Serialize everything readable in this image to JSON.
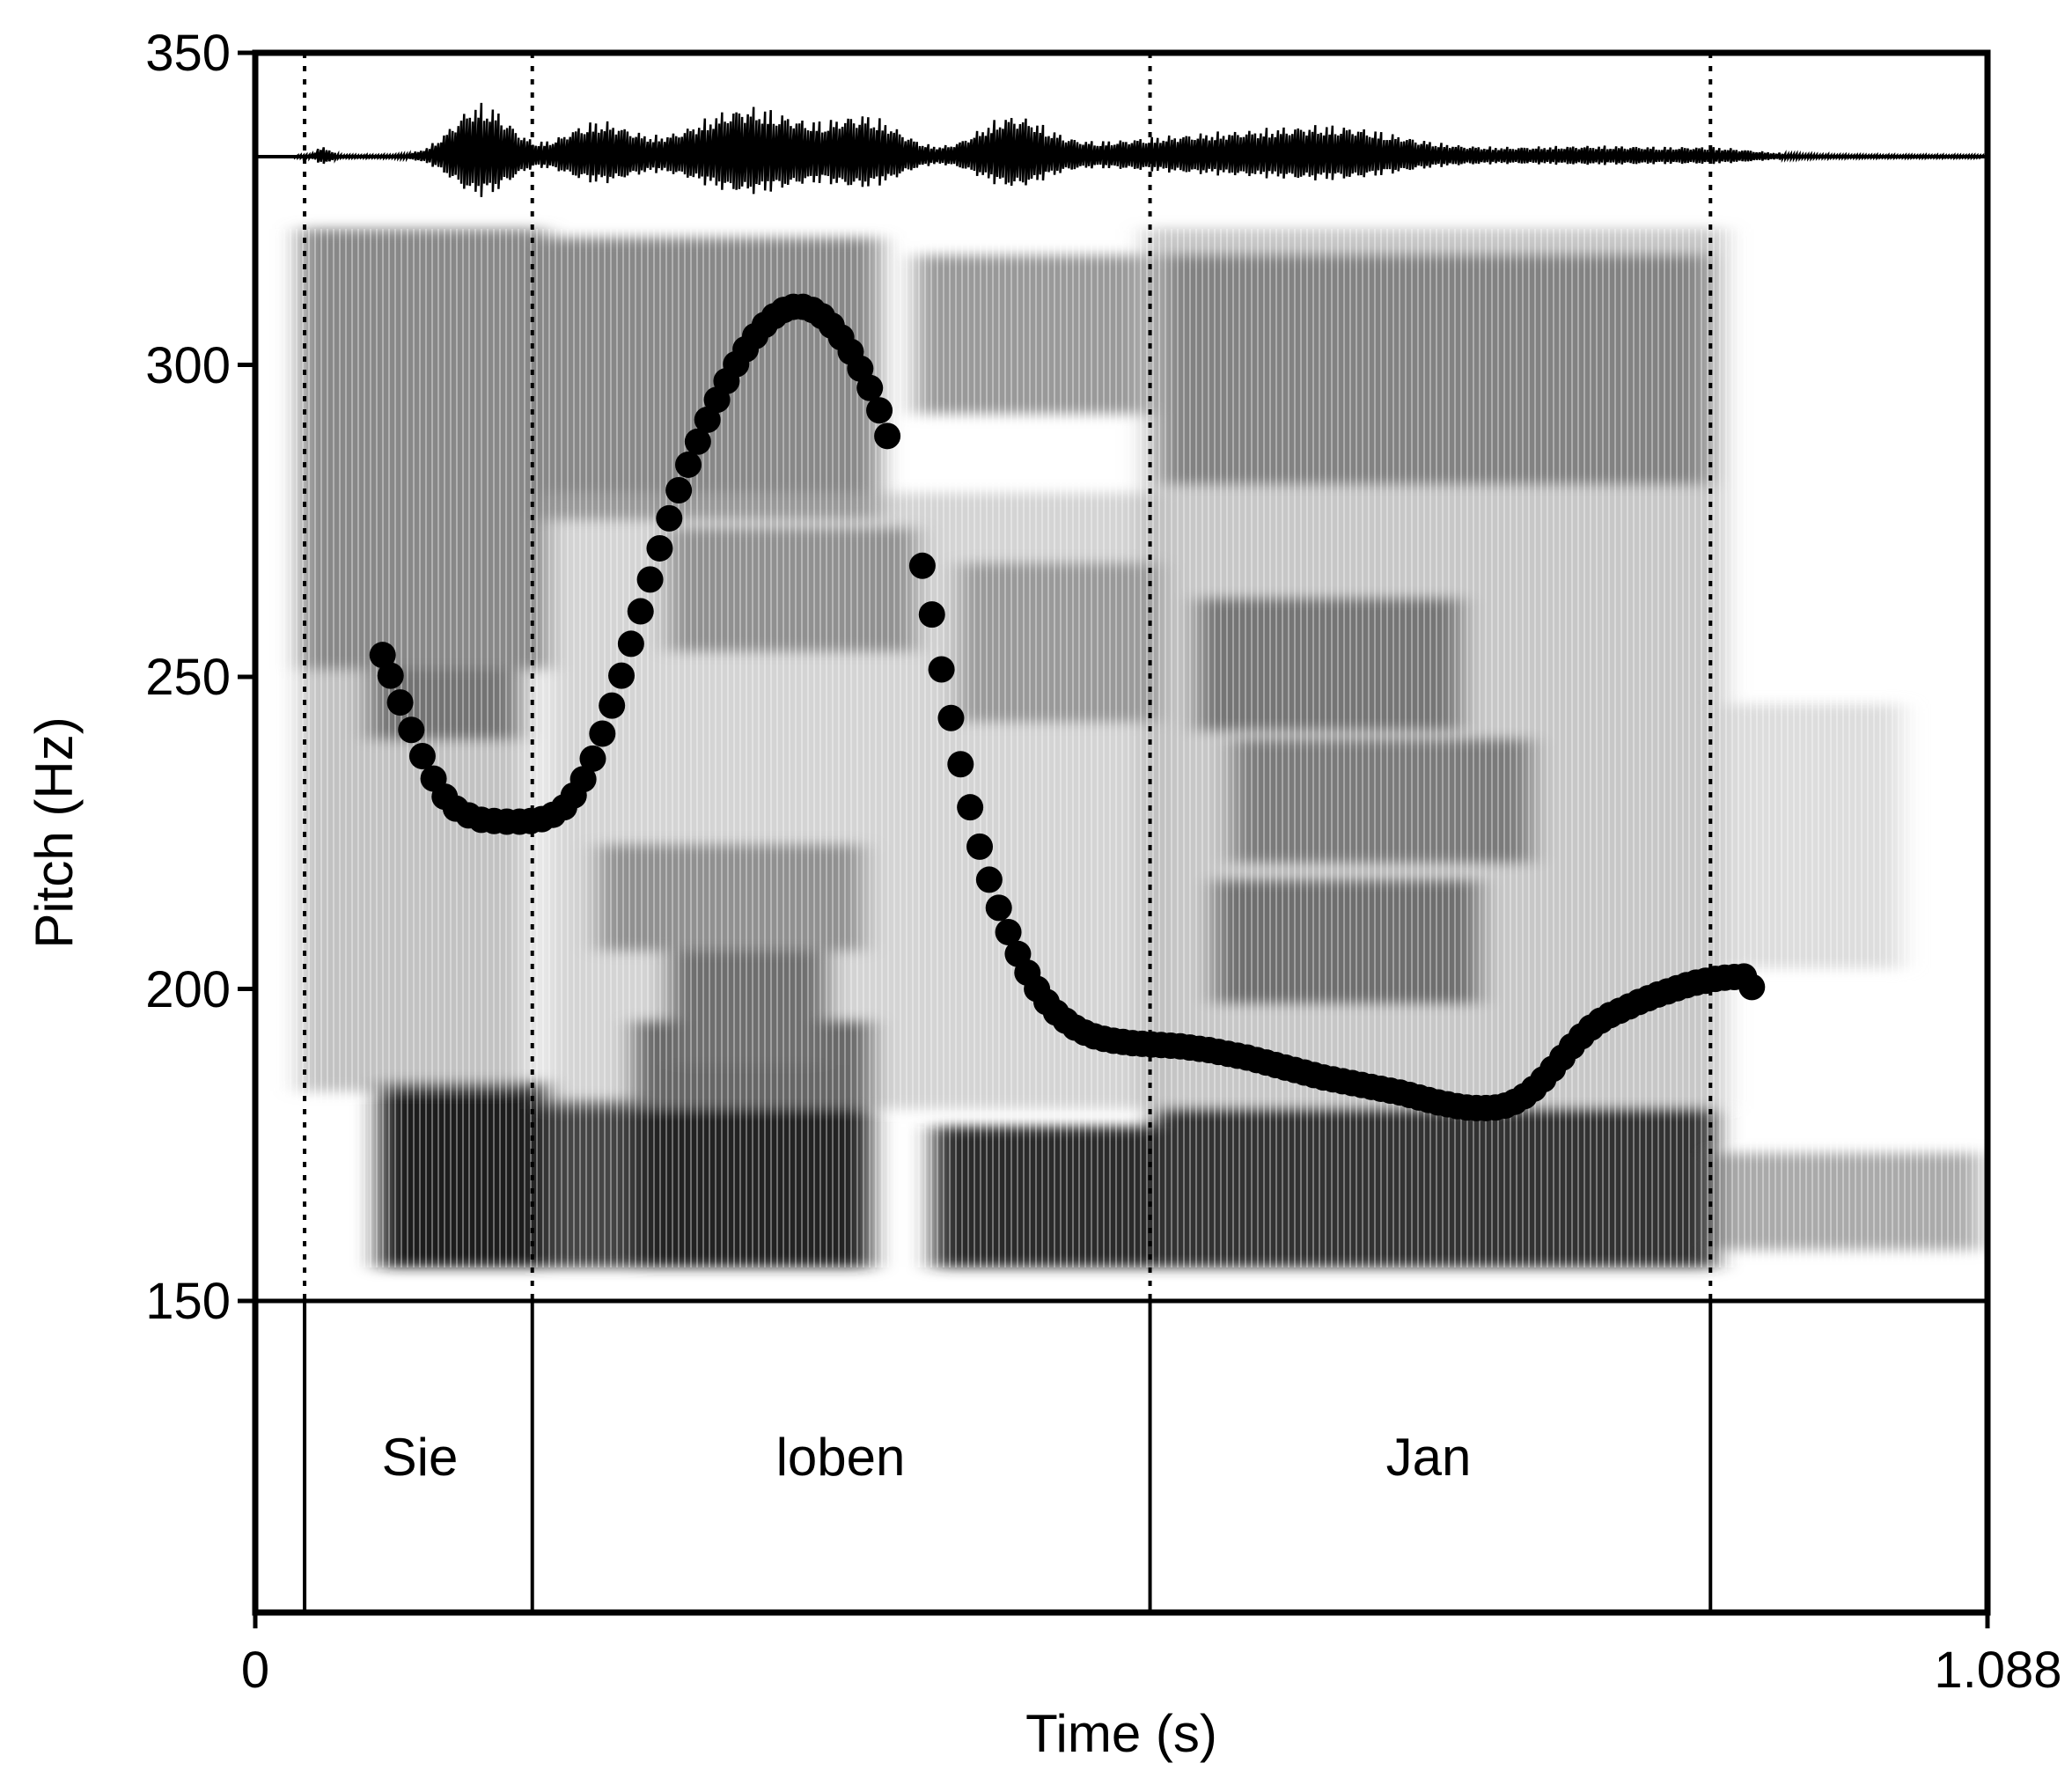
{
  "chart_data": {
    "type": "scatter",
    "title": "",
    "xlabel": "Time (s)",
    "ylabel": "Pitch (Hz)",
    "xlim": [
      0,
      1.088
    ],
    "ylim": [
      150,
      350
    ],
    "x_tick_labels": [
      "0",
      "1.088"
    ],
    "y_tick_labels": [
      "350",
      "300",
      "250",
      "200",
      "150"
    ],
    "grid": false,
    "legend": "none",
    "word_boundaries": [
      0.031,
      0.174,
      0.562,
      0.914
    ],
    "words": [
      {
        "label": "Sie",
        "start": 0.031,
        "end": 0.174
      },
      {
        "label": "loben",
        "start": 0.174,
        "end": 0.562
      },
      {
        "label": "Jan",
        "start": 0.562,
        "end": 0.914
      }
    ],
    "series": [
      {
        "values": [
          [
            0.08,
            253.5
          ],
          [
            0.085,
            250.2
          ],
          [
            0.091,
            245.9
          ],
          [
            0.098,
            241.5
          ],
          [
            0.105,
            237.3
          ],
          [
            0.112,
            233.7
          ],
          [
            0.119,
            230.8
          ],
          [
            0.126,
            228.9
          ],
          [
            0.134,
            227.8
          ],
          [
            0.142,
            227.1
          ],
          [
            0.15,
            226.9
          ],
          [
            0.158,
            226.8
          ],
          [
            0.166,
            226.8
          ],
          [
            0.173,
            226.9
          ],
          [
            0.18,
            227.2
          ],
          [
            0.187,
            227.9
          ],
          [
            0.194,
            229.1
          ],
          [
            0.2,
            231.0
          ],
          [
            0.206,
            233.6
          ],
          [
            0.212,
            236.9
          ],
          [
            0.218,
            240.9
          ],
          [
            0.224,
            245.4
          ],
          [
            0.23,
            250.2
          ],
          [
            0.236,
            255.3
          ],
          [
            0.242,
            260.5
          ],
          [
            0.248,
            265.6
          ],
          [
            0.254,
            270.6
          ],
          [
            0.26,
            275.4
          ],
          [
            0.266,
            279.9
          ],
          [
            0.272,
            284.0
          ],
          [
            0.278,
            287.7
          ],
          [
            0.284,
            291.2
          ],
          [
            0.29,
            294.4
          ],
          [
            0.296,
            297.4
          ],
          [
            0.302,
            300.1
          ],
          [
            0.308,
            302.5
          ],
          [
            0.314,
            304.6
          ],
          [
            0.32,
            306.4
          ],
          [
            0.326,
            307.8
          ],
          [
            0.332,
            308.8
          ],
          [
            0.338,
            309.3
          ],
          [
            0.344,
            309.3
          ],
          [
            0.35,
            308.8
          ],
          [
            0.356,
            307.8
          ],
          [
            0.362,
            306.3
          ],
          [
            0.368,
            304.4
          ],
          [
            0.374,
            302.1
          ],
          [
            0.38,
            299.4
          ],
          [
            0.386,
            296.3
          ],
          [
            0.392,
            292.7
          ],
          [
            0.397,
            288.6
          ],
          [
            0.419,
            267.8
          ],
          [
            0.425,
            260.0
          ],
          [
            0.431,
            251.2
          ],
          [
            0.437,
            243.4
          ],
          [
            0.443,
            236.0
          ],
          [
            0.449,
            229.1
          ],
          [
            0.455,
            222.8
          ],
          [
            0.461,
            217.5
          ],
          [
            0.467,
            213.0
          ],
          [
            0.473,
            209.1
          ],
          [
            0.479,
            205.6
          ],
          [
            0.485,
            202.6
          ],
          [
            0.491,
            200.0
          ],
          [
            0.497,
            197.9
          ],
          [
            0.503,
            196.2
          ],
          [
            0.509,
            194.9
          ],
          [
            0.515,
            193.8
          ],
          [
            0.521,
            193.0
          ],
          [
            0.527,
            192.4
          ],
          [
            0.533,
            192.0
          ],
          [
            0.539,
            191.7
          ],
          [
            0.545,
            191.5
          ],
          [
            0.551,
            191.3
          ],
          [
            0.557,
            191.2
          ],
          [
            0.563,
            191.1
          ],
          [
            0.569,
            191.0
          ],
          [
            0.575,
            190.9
          ],
          [
            0.581,
            190.8
          ],
          [
            0.587,
            190.6
          ],
          [
            0.593,
            190.4
          ],
          [
            0.599,
            190.2
          ],
          [
            0.605,
            189.9
          ],
          [
            0.611,
            189.6
          ],
          [
            0.617,
            189.3
          ],
          [
            0.623,
            189.0
          ],
          [
            0.629,
            188.6
          ],
          [
            0.635,
            188.2
          ],
          [
            0.641,
            187.8
          ],
          [
            0.647,
            187.4
          ],
          [
            0.653,
            187.0
          ],
          [
            0.659,
            186.6
          ],
          [
            0.665,
            186.2
          ],
          [
            0.671,
            185.8
          ],
          [
            0.677,
            185.5
          ],
          [
            0.683,
            185.2
          ],
          [
            0.689,
            184.9
          ],
          [
            0.695,
            184.6
          ],
          [
            0.701,
            184.3
          ],
          [
            0.707,
            184.0
          ],
          [
            0.713,
            183.7
          ],
          [
            0.719,
            183.4
          ],
          [
            0.725,
            183.0
          ],
          [
            0.731,
            182.6
          ],
          [
            0.737,
            182.2
          ],
          [
            0.743,
            181.8
          ],
          [
            0.749,
            181.5
          ],
          [
            0.755,
            181.2
          ],
          [
            0.761,
            181.0
          ],
          [
            0.767,
            180.9
          ],
          [
            0.773,
            180.9
          ],
          [
            0.779,
            181.0
          ],
          [
            0.785,
            181.3
          ],
          [
            0.791,
            181.9
          ],
          [
            0.797,
            182.8
          ],
          [
            0.803,
            184.0
          ],
          [
            0.809,
            185.5
          ],
          [
            0.815,
            187.2
          ],
          [
            0.821,
            189.0
          ],
          [
            0.827,
            190.8
          ],
          [
            0.833,
            192.4
          ],
          [
            0.839,
            193.8
          ],
          [
            0.845,
            194.9
          ],
          [
            0.851,
            195.8
          ],
          [
            0.857,
            196.5
          ],
          [
            0.863,
            197.2
          ],
          [
            0.869,
            197.9
          ],
          [
            0.875,
            198.5
          ],
          [
            0.881,
            199.1
          ],
          [
            0.887,
            199.6
          ],
          [
            0.893,
            200.1
          ],
          [
            0.899,
            200.6
          ],
          [
            0.905,
            201.0
          ],
          [
            0.911,
            201.3
          ],
          [
            0.917,
            201.6
          ],
          [
            0.923,
            201.8
          ],
          [
            0.929,
            201.9
          ],
          [
            0.935,
            202.0
          ],
          [
            0.94,
            200.3
          ]
        ]
      }
    ]
  }
}
